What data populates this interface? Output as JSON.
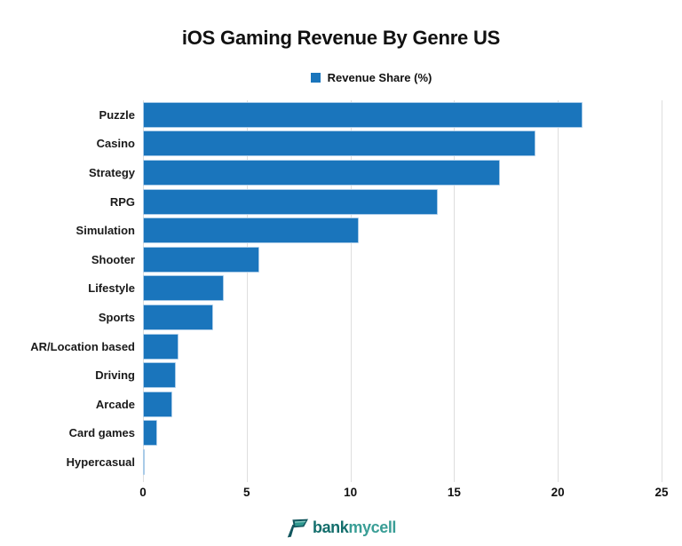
{
  "title": "iOS Gaming Revenue By Genre US",
  "legend": {
    "label": "Revenue Share (%)",
    "swatch_color": "#1a75bc"
  },
  "chart_data": {
    "type": "bar",
    "orientation": "horizontal",
    "title": "iOS Gaming Revenue By Genre US",
    "categories": [
      "Puzzle",
      "Casino",
      "Strategy",
      "RPG",
      "Simulation",
      "Shooter",
      "Lifestyle",
      "Sports",
      "AR/Location based",
      "Driving",
      "Arcade",
      "Card games",
      "Hypercasual"
    ],
    "series": [
      {
        "name": "Revenue Share (%)",
        "values": [
          21.2,
          18.9,
          17.2,
          14.2,
          10.4,
          5.6,
          3.9,
          3.4,
          1.7,
          1.6,
          1.4,
          0.7,
          0.1
        ]
      }
    ],
    "xlabel": "",
    "ylabel": "",
    "xlim": [
      0,
      25
    ],
    "xticks": [
      0,
      5,
      10,
      15,
      20,
      25
    ],
    "grid": true,
    "legend_position": "top",
    "bar_color": "#1a75bc",
    "gridline_color": "#dedede"
  },
  "footer": {
    "bank": "bank",
    "mycell": "mycell"
  }
}
